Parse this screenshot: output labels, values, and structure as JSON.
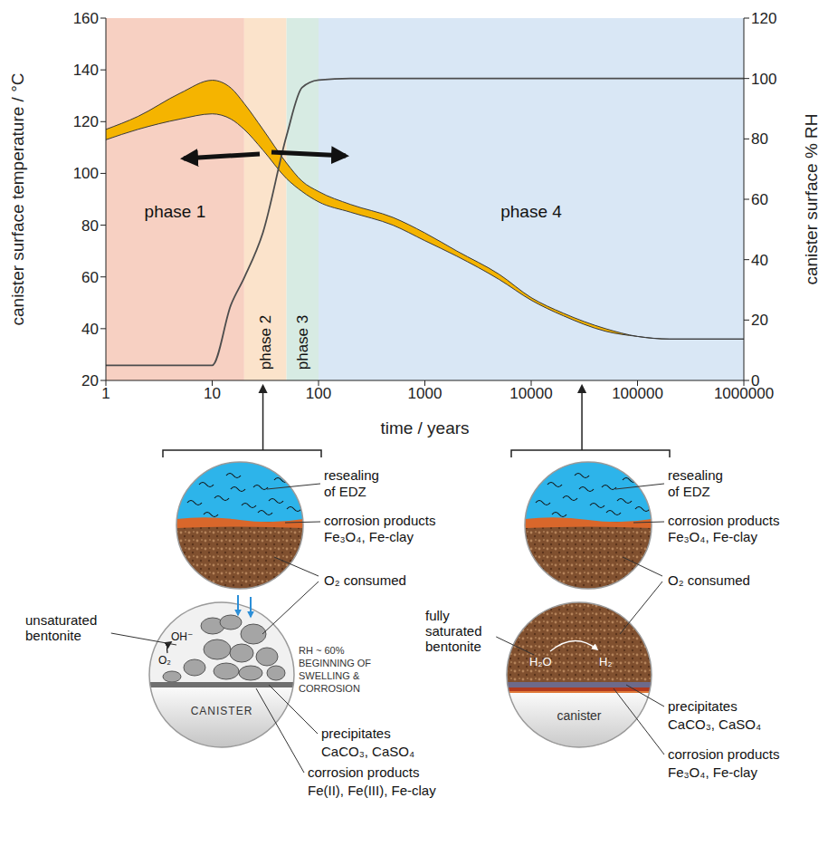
{
  "chart_data": {
    "type": "line",
    "x_label": "time / years",
    "y_label": "canister surface temperature / °C",
    "y2_label": "canister surface % RH",
    "log": "x",
    "grid": false,
    "xlim": [
      1,
      1000000
    ],
    "xticks": [
      1,
      10,
      100,
      1000,
      10000,
      100000,
      1000000
    ],
    "ylim": [
      20,
      160
    ],
    "yticks": [
      20,
      40,
      60,
      80,
      100,
      120,
      140,
      160
    ],
    "y2lim": [
      0,
      120
    ],
    "y2ticks": [
      0,
      20,
      40,
      60,
      80,
      100,
      120
    ],
    "x": [
      1,
      2,
      5,
      10,
      15,
      20,
      30,
      50,
      70,
      100,
      200,
      500,
      1000,
      2000,
      5000,
      10000,
      20000,
      50000,
      100000,
      200000,
      1000000
    ],
    "series": [
      {
        "type": "area",
        "color": "#f5b400",
        "lower": [
          113,
          117,
          121,
          123,
          121,
          117,
          109,
          98,
          93,
          89,
          85,
          80,
          74,
          68,
          59,
          51,
          45,
          39,
          37,
          36,
          36
        ],
        "upper": [
          117,
          122,
          131,
          136,
          133,
          127,
          117,
          104,
          97,
          93,
          88,
          83,
          77,
          70,
          61,
          52,
          46,
          40,
          37,
          36,
          36
        ]
      },
      {
        "type": "line",
        "axis": "y2",
        "color": "#4d4d4d",
        "values": [
          5,
          5,
          5,
          5,
          25,
          34,
          49,
          81,
          97,
          99.5,
          100,
          100,
          100,
          100,
          100,
          100,
          100,
          100,
          100,
          100,
          100
        ]
      }
    ],
    "phases": [
      {
        "label": "phase 1",
        "x": [
          1,
          20
        ],
        "color": "#f7d0c2"
      },
      {
        "label": "phase 2",
        "x": [
          20,
          50
        ],
        "color": "#fbe3cb"
      },
      {
        "label": "phase 3",
        "x": [
          50,
          100
        ],
        "color": "#d7ebe3"
      },
      {
        "label": "phase 4",
        "x": [
          100,
          1000000
        ],
        "color": "#d9e7f5"
      }
    ]
  },
  "diagrams": [
    {
      "time": 30,
      "top": {
        "edz": [
          "resealing",
          "of EDZ"
        ],
        "corrosion": [
          "corrosion products",
          "Fe₃O₄, Fe-clay"
        ]
      },
      "o2": "O₂ consumed",
      "bottom": {
        "bentonite": [
          "unsaturated",
          "bentonite"
        ],
        "note": [
          "RH ~ 60%",
          "BEGINNING OF",
          "SWELLING &",
          "CORROSION"
        ],
        "canister": "CANISTER",
        "species": [
          "O₂",
          "OH⁻"
        ],
        "precipitates": [
          "precipitates",
          "CaCO₃, CaSO₄"
        ],
        "corrosion": [
          "corrosion products",
          "Fe(II), Fe(III), Fe-clay"
        ]
      }
    },
    {
      "time": 30000,
      "top": {
        "edz": [
          "resealing",
          "of EDZ"
        ],
        "corrosion": [
          "corrosion products",
          "Fe₃O₄, Fe-clay"
        ]
      },
      "o2": "O₂ consumed",
      "bottom": {
        "bentonite": [
          "fully",
          "saturated",
          "bentonite"
        ],
        "canister": "canister",
        "species": [
          "H₂O",
          "H₂"
        ],
        "precipitates": [
          "precipitates",
          "CaCO₃, CaSO₄"
        ],
        "corrosion": [
          "corrosion products",
          "Fe₃O₄, Fe-clay"
        ]
      }
    }
  ]
}
